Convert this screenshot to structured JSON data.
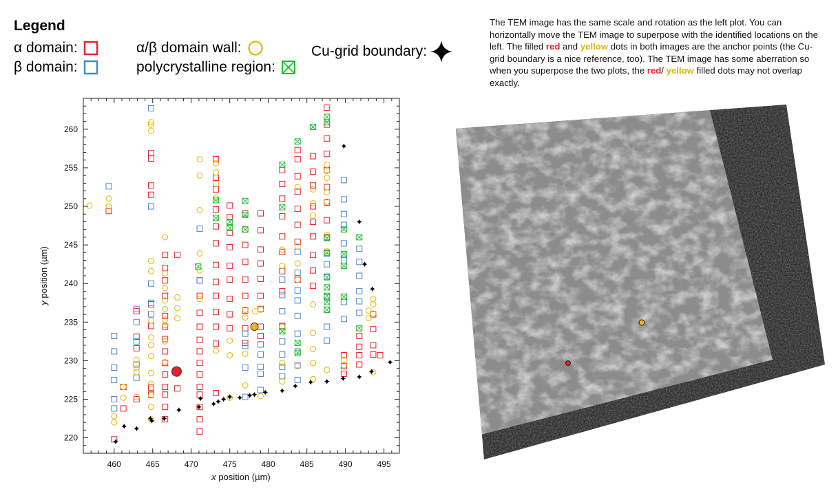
{
  "legend": {
    "title": "Legend",
    "items": [
      {
        "key": "alpha",
        "label": "α domain:",
        "color": "#e8202a"
      },
      {
        "key": "beta",
        "label": "β domain:",
        "color": "#4a86c8"
      },
      {
        "key": "wall",
        "label": "α/β domain wall:",
        "color": "#e6b400"
      },
      {
        "key": "poly",
        "label": "polycrystalline region:",
        "color": "#22bb33"
      },
      {
        "key": "grid",
        "label": "Cu-grid boundary:",
        "color": "#000000"
      }
    ]
  },
  "note": {
    "part1": "The TEM image has the same scale and rotation as the left plot. You can horizontally move the TEM image to superpose with the identified locations on the left. The filled ",
    "red": "red",
    "part2": " and ",
    "yellow": "yellow",
    "part3": " dots in both images are the anchor points (the Cu-grid boundary is a nice reference, too). The TEM image has some aberration so when you superpose the two plots, the ",
    "red2": "red",
    "part4": "/ ",
    "yellow2": "yellow",
    "part5": " filled dots may not overlap exactly."
  },
  "chart_data": {
    "type": "scatter",
    "xlabel_italic": "x",
    "xlabel_rest": " position (µm)",
    "ylabel_italic": "y",
    "ylabel_rest": " position (µm)",
    "xlim": [
      456,
      497
    ],
    "ylim": [
      218,
      264
    ],
    "xticks": [
      460,
      465,
      470,
      475,
      480,
      485,
      490,
      495
    ],
    "yticks": [
      220,
      225,
      230,
      235,
      240,
      245,
      250,
      255,
      260
    ],
    "grid": false,
    "series": [
      {
        "name": "α domain",
        "key": "alpha",
        "color": "#e8202a",
        "x": [
          459.3,
          460.0,
          464.8,
          464.8,
          464.8,
          464.8,
          466.6,
          466.6,
          466.6,
          466.6,
          466.6,
          466.6,
          466.6,
          466.6,
          466.6,
          466.6,
          466.6,
          466.6,
          466.6,
          466.6,
          468.2,
          468.2,
          462.9,
          462.9,
          462.9,
          462.9,
          464.8,
          464.8,
          464.8,
          464.8,
          461.2,
          461.2,
          471.1,
          471.1,
          471.1,
          471.1,
          471.1,
          471.1,
          471.1,
          471.1,
          471.1,
          471.1,
          471.1,
          471.1,
          471.1,
          473.2,
          473.2,
          473.2,
          473.2,
          473.2,
          473.2,
          473.2,
          473.2,
          473.2,
          473.2,
          473.2,
          473.2,
          473.2,
          475.0,
          475.0,
          475.0,
          475.0,
          475.0,
          475.0,
          475.0,
          475.0,
          475.0,
          477.0,
          477.0,
          477.0,
          477.0,
          477.0,
          477.0,
          477.0,
          477.0,
          477.0,
          479.0,
          479.0,
          479.0,
          479.0,
          479.0,
          479.0,
          479.0,
          479.0,
          479.0,
          481.8,
          481.8,
          481.8,
          481.8,
          481.8,
          481.8,
          481.8,
          481.8,
          481.8,
          483.8,
          483.8,
          483.8,
          483.8,
          483.8,
          483.8,
          483.8,
          483.8,
          485.8,
          485.8,
          485.8,
          485.8,
          485.8,
          485.8,
          485.8,
          485.8,
          485.8,
          487.6,
          487.6,
          487.6,
          487.6,
          487.6,
          487.6,
          487.6,
          487.6,
          487.6,
          489.8,
          489.8,
          489.8,
          491.8,
          491.8,
          491.8,
          491.8,
          493.6,
          493.6,
          493.6,
          493.6,
          494.5
        ],
        "y": [
          249.4,
          219.8,
          256.9,
          256.2,
          252.7,
          251.5,
          243.7,
          242.0,
          240.4,
          238.4,
          235.8,
          234.4,
          232.8,
          231.2,
          229.7,
          228.2,
          226.6,
          225.6,
          224.0,
          222.4,
          243.7,
          226.4,
          236.4,
          233.1,
          231.6,
          225.0,
          237.3,
          234.5,
          226.5,
          225.6,
          226.6,
          223.8,
          240.4,
          238.4,
          236.2,
          234.4,
          232.7,
          231.2,
          229.7,
          228.2,
          226.6,
          225.6,
          224.0,
          222.4,
          220.8,
          256.1,
          253.7,
          252.2,
          249.6,
          247.4,
          245.2,
          242.4,
          240.2,
          238.4,
          236.3,
          234.4,
          232.2,
          225.8,
          250.1,
          248.6,
          246.6,
          244.7,
          242.3,
          240.5,
          238.0,
          236.0,
          234.2,
          249.1,
          247.0,
          245.0,
          242.8,
          240.5,
          238.4,
          236.5,
          234.2,
          232.3,
          249.1,
          246.9,
          244.4,
          242.6,
          240.6,
          238.4,
          236.7,
          234.4,
          233.2,
          254.7,
          252.9,
          251.0,
          248.7,
          246.1,
          244.1,
          241.6,
          239.0,
          234.5,
          257.3,
          256.1,
          253.9,
          251.9,
          249.7,
          247.6,
          245.4,
          240.5,
          256.5,
          254.5,
          252.7,
          250.0,
          248.0,
          246.1,
          243.7,
          241.7,
          239.7,
          262.8,
          260.6,
          258.8,
          256.8,
          254.7,
          252.5,
          250.5,
          248.2,
          246.0,
          230.7,
          229.3,
          228.3,
          233.2,
          231.8,
          230.7,
          229.5,
          236.0,
          234.1,
          232.0,
          230.8,
          230.7
        ]
      },
      {
        "name": "β domain",
        "key": "beta",
        "color": "#4a86c8",
        "x": [
          459.3,
          460.0,
          460.0,
          460.0,
          460.0,
          460.0,
          460.0,
          462.9,
          462.9,
          462.9,
          462.9,
          462.9,
          464.8,
          464.8,
          464.8,
          464.8,
          464.8,
          471.1,
          471.1,
          477.0,
          477.0,
          477.0,
          477.0,
          479.0,
          479.0,
          479.0,
          479.0,
          479.0,
          479.0,
          481.8,
          481.8,
          481.8,
          481.8,
          481.8,
          481.8,
          481.8,
          481.8,
          483.8,
          483.8,
          483.8,
          483.8,
          483.8,
          483.8,
          483.8,
          483.8,
          483.8,
          487.6,
          487.6,
          487.6,
          487.6,
          487.6,
          487.6,
          487.6,
          487.6,
          489.8,
          489.8,
          489.8,
          489.8,
          489.8,
          489.8,
          489.8,
          489.8,
          491.8,
          491.8,
          491.8,
          491.8,
          491.8,
          491.8
        ],
        "y": [
          252.6,
          233.2,
          231.2,
          229.1,
          227.5,
          225.0,
          223.8,
          236.7,
          235.0,
          232.5,
          229.5,
          227.8,
          262.7,
          250.0,
          240.0,
          237.5,
          236.0,
          247.1,
          240.4,
          233.5,
          231.9,
          229.1,
          225.3,
          232.1,
          229.2,
          228.3,
          226.2,
          230.8,
          232.1,
          240.5,
          238.5,
          236.4,
          234.4,
          232.5,
          230.8,
          229.2,
          228.0,
          235.8,
          233.5,
          231.2,
          229.4,
          227.5,
          244.1,
          241.4,
          239.1,
          237.8,
          245.9,
          243.9,
          242.5,
          240.9,
          238.2,
          236.6,
          234.4,
          232.6,
          253.4,
          250.9,
          249.0,
          247.6,
          245.2,
          243.0,
          237.6,
          235.4,
          244.5,
          242.8,
          241.0,
          239.0,
          237.7,
          236.2
        ]
      },
      {
        "name": "α/β domain wall",
        "key": "wall",
        "color": "#e6b400",
        "x": [
          456.8,
          459.3,
          459.3,
          460.0,
          460.0,
          461.2,
          461.2,
          462.9,
          462.9,
          462.9,
          462.9,
          464.8,
          464.8,
          464.8,
          464.8,
          464.8,
          464.8,
          464.8,
          464.8,
          464.8,
          464.8,
          464.8,
          464.8,
          464.8,
          464.8,
          466.6,
          466.6,
          466.6,
          466.6,
          466.6,
          466.6,
          466.6,
          466.6,
          466.6,
          468.2,
          468.2,
          468.2,
          468.2,
          471.1,
          471.1,
          471.1,
          471.1,
          471.1,
          471.1,
          473.2,
          473.2,
          473.2,
          473.2,
          473.2,
          475.0,
          475.0,
          475.0,
          477.0,
          477.0,
          477.0,
          477.0,
          478.3,
          479.0,
          479.0,
          481.8,
          481.8,
          481.8,
          481.8,
          481.8,
          483.8,
          483.8,
          483.8,
          483.8,
          483.8,
          485.8,
          485.8,
          485.8,
          485.8,
          485.8,
          485.8,
          485.8,
          485.8,
          487.6,
          487.6,
          487.6,
          487.6,
          487.6,
          487.6,
          487.6,
          487.6,
          489.8,
          489.8,
          493.0,
          493.0,
          493.6,
          493.6,
          493.6,
          493.6
        ],
        "y": [
          250.1,
          251.0,
          250.0,
          222.8,
          222.0,
          226.6,
          225.2,
          230.1,
          229.0,
          228.5,
          225.3,
          260.9,
          260.6,
          259.8,
          242.9,
          241.6,
          235.2,
          233.0,
          232.0,
          230.6,
          228.4,
          227.0,
          225.5,
          224.0,
          222.4,
          246.0,
          241.3,
          239.4,
          237.8,
          236.7,
          235.3,
          234.6,
          232.5,
          229.8,
          238.2,
          236.8,
          235.5,
          228.3,
          256.1,
          254.0,
          249.5,
          243.9,
          241.7,
          238.0,
          255.6,
          254.4,
          252.9,
          251.1,
          231.3,
          232.6,
          230.7,
          225.2,
          236.6,
          235.6,
          230.9,
          226.8,
          236.4,
          236.6,
          225.4,
          244.4,
          242.3,
          234.4,
          229.7,
          227.3,
          252.5,
          244.8,
          242.6,
          240.5,
          229.3,
          252.2,
          250.4,
          248.8,
          237.3,
          233.6,
          231.5,
          229.7,
          227.6,
          255.4,
          254.6,
          253.7,
          251.8,
          250.6,
          246.3,
          244.2,
          228.8,
          229.4,
          230.1,
          236.5,
          235.5,
          237.3,
          238.0,
          236.1,
          228.5
        ]
      },
      {
        "name": "polycrystalline region",
        "key": "poly",
        "color": "#22bb33",
        "x": [
          470.9,
          473.2,
          473.2,
          475.0,
          475.0,
          477.0,
          477.0,
          477.0,
          481.8,
          481.8,
          481.8,
          483.8,
          483.8,
          483.8,
          485.8,
          487.6,
          487.6,
          487.6,
          487.6,
          487.6,
          487.6,
          487.6,
          487.6,
          487.6,
          489.8,
          489.8,
          489.8,
          489.8,
          491.8,
          491.8
        ],
        "y": [
          242.2,
          250.8,
          248.5,
          248.0,
          247.2,
          250.7,
          248.9,
          247.0,
          255.4,
          249.9,
          233.8,
          258.4,
          232.3,
          231.0,
          260.3,
          261.6,
          260.9,
          240.8,
          239.5,
          238.4,
          237.6,
          236.6,
          245.9,
          244.0,
          247.0,
          243.8,
          242.3,
          238.3,
          246.0,
          234.2
        ]
      },
      {
        "name": "Cu-grid boundary",
        "key": "grid",
        "color": "#000000",
        "x": [
          460.2,
          461.3,
          462.9,
          464.7,
          464.9,
          466.5,
          468.4,
          471.0,
          471.2,
          472.9,
          473.5,
          474.2,
          475.0,
          476.3,
          477.6,
          478.2,
          479.6,
          481.8,
          483.5,
          485.5,
          487.6,
          489.7,
          489.8,
          491.8,
          491.8,
          492.5,
          493.4,
          493.5,
          495.8
        ],
        "y": [
          219.5,
          221.5,
          221.2,
          222.5,
          222.2,
          222.5,
          223.6,
          224.0,
          225.1,
          224.4,
          224.7,
          225.0,
          225.3,
          225.2,
          225.5,
          225.6,
          225.9,
          226.1,
          226.7,
          227.2,
          227.3,
          227.7,
          257.8,
          227.9,
          248.0,
          242.5,
          228.6,
          239.3,
          229.8
        ]
      }
    ],
    "anchors": [
      {
        "name": "red anchor",
        "x": 468.1,
        "y": 228.6,
        "color": "#e8202a"
      },
      {
        "name": "yellow anchor",
        "x": 478.2,
        "y": 234.4,
        "color": "#f3b51b"
      }
    ]
  },
  "tem": {
    "red_anchor_color": "#e8202a",
    "yellow_anchor_color": "#f3b51b"
  }
}
